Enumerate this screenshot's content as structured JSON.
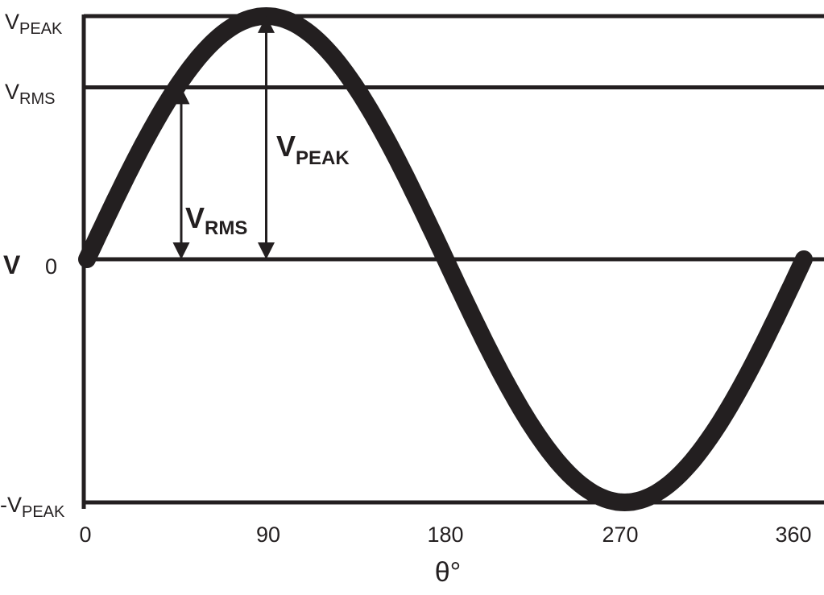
{
  "chart_data": {
    "type": "line",
    "title": "",
    "waveform": "sine",
    "xlabel": "θ°",
    "ylabel": "V",
    "xlim": [
      0,
      360
    ],
    "ylim": [
      -1,
      1
    ],
    "x_ticks": [
      "0",
      "90",
      "180",
      "270",
      "360"
    ],
    "x_tick_values": [
      0,
      90,
      180,
      270,
      360
    ],
    "peak": 1,
    "rms": 0.707,
    "y_levels": [
      {
        "label_main": "V",
        "label_sub": "PEAK",
        "value": 1
      },
      {
        "label_main": "V",
        "label_sub": "RMS",
        "value": 0.707
      },
      {
        "label_main": "0",
        "label_sub": "",
        "value": 0
      },
      {
        "label_main": "-V",
        "label_sub": "PEAK",
        "value": -1
      }
    ],
    "annotations": [
      {
        "main": "V",
        "sub": "RMS",
        "at_x": 45,
        "from": 0,
        "to": 0.707
      },
      {
        "main": "V",
        "sub": "PEAK",
        "at_x": 90,
        "from": 0,
        "to": 1
      }
    ],
    "color": "#231f20"
  }
}
